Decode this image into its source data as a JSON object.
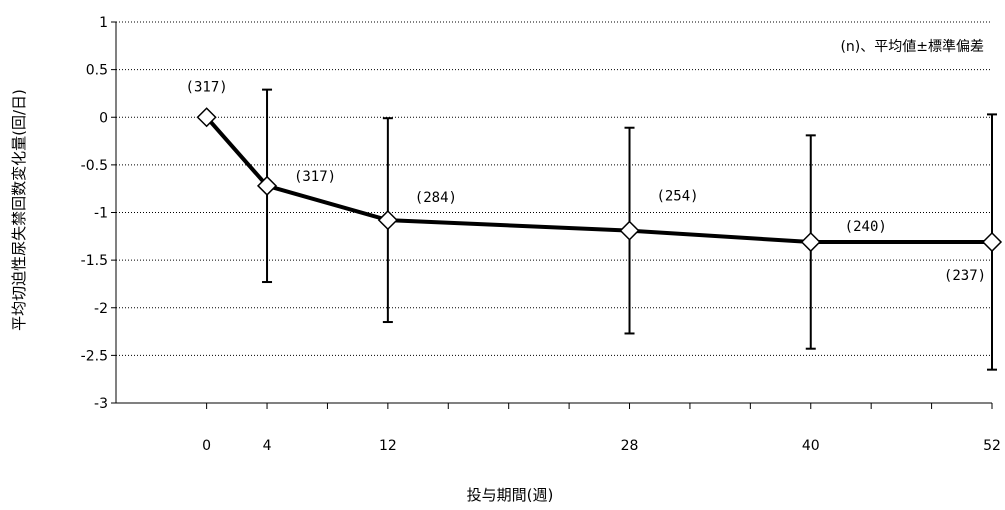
{
  "chart_data": {
    "type": "line",
    "x": [
      0,
      4,
      12,
      28,
      40,
      52
    ],
    "x_tick_labels": [
      "0",
      "4",
      "12",
      "28",
      "40",
      "52"
    ],
    "y_tick_labels": [
      "1",
      "0.5",
      "0",
      "-0.5",
      "-1",
      "-1.5",
      "-2",
      "-2.5",
      "-3"
    ],
    "xlabel": "投与期間(週)",
    "ylabel": "平均切迫性尿失禁回数変化量(回/日)",
    "annotation": "(n)、平均値±標準偏差",
    "ylim": [
      -3,
      1
    ],
    "xlim": [
      -6,
      52
    ],
    "grid": "horizontal dotted",
    "series": [
      {
        "values": [
          0,
          -0.72,
          -1.08,
          -1.19,
          -1.31,
          -1.31
        ],
        "error_upper": [
          0,
          0.29,
          -0.01,
          -0.11,
          -0.19,
          0.03
        ],
        "error_lower": [
          0,
          -1.73,
          -2.15,
          -2.27,
          -2.43,
          -2.65
        ],
        "n_labels": [
          "(317)",
          "(317)",
          "(284)",
          "(254)",
          "(240)",
          "(237)"
        ]
      }
    ]
  }
}
